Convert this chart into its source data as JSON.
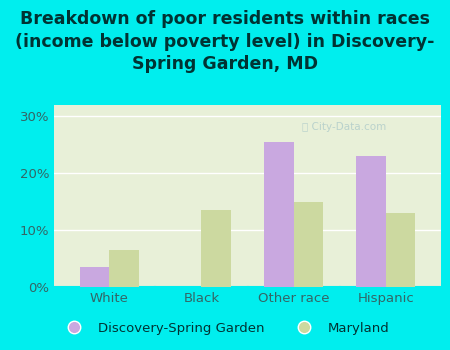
{
  "title": "Breakdown of poor residents within races\n(income below poverty level) in Discovery-\nSpring Garden, MD",
  "categories": [
    "White",
    "Black",
    "Other race",
    "Hispanic"
  ],
  "discovery_values": [
    3.5,
    0,
    25.5,
    23.0
  ],
  "maryland_values": [
    6.5,
    13.5,
    15.0,
    13.0
  ],
  "discovery_color": "#c9a8e0",
  "maryland_color": "#ccd9a0",
  "background_outer": "#00eeee",
  "background_inner": "#e8f0d8",
  "yticks": [
    0,
    10,
    20,
    30
  ],
  "ylim": [
    0,
    32
  ],
  "legend_labels": [
    "Discovery-Spring Garden",
    "Maryland"
  ],
  "bar_width": 0.32,
  "title_fontsize": 12.5,
  "tick_fontsize": 9.5,
  "legend_fontsize": 9.5,
  "title_color": "#003333",
  "tick_color": "#336666",
  "watermark_text": "ⓘ City-Data.com"
}
